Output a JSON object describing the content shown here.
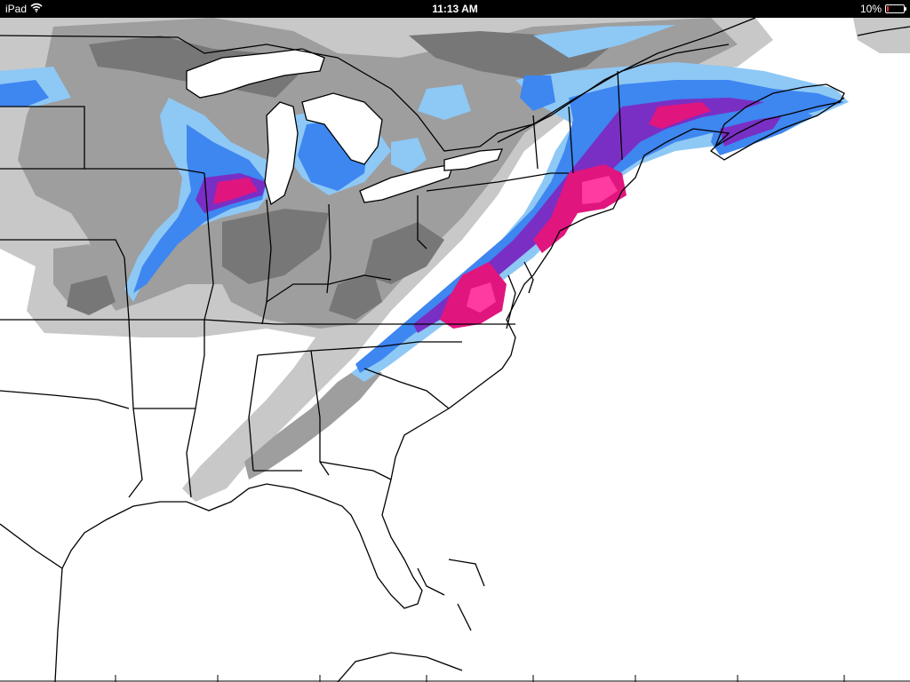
{
  "status_bar": {
    "device": "iPad",
    "time": "11:13 AM",
    "battery_text": "10%",
    "battery_level": 0.1,
    "wifi_icon": "wifi-icon",
    "battery_icon": "battery-icon",
    "battery_color": "#e33333"
  },
  "map": {
    "colors": {
      "light_gray": "#c8c8c8",
      "mid_gray": "#a0a0a0",
      "dark_gray": "#7a7a7a",
      "light_blue": "#8ec8f5",
      "blue": "#3e86f0",
      "purple": "#7a2fc4",
      "magenta": "#e0157e",
      "pink": "#ff3aa0"
    }
  }
}
